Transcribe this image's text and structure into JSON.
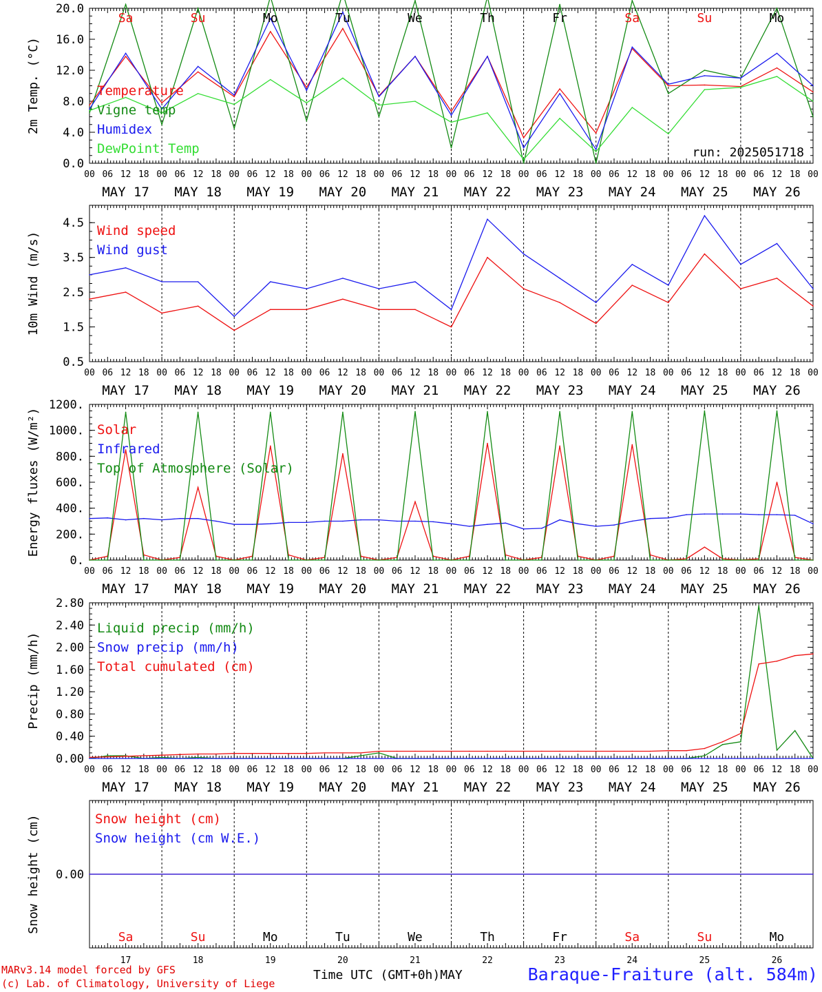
{
  "colors": {
    "red": "#ee1111",
    "green": "#138a13",
    "blue": "#1a1aee",
    "lightgreen": "#33dd33",
    "grid": "#000000"
  },
  "days": [
    {
      "dow": "Sa",
      "date": "MAY 17",
      "num": "17",
      "weekend": true
    },
    {
      "dow": "Su",
      "date": "MAY 18",
      "num": "18",
      "weekend": true
    },
    {
      "dow": "Mo",
      "date": "MAY 19",
      "num": "19",
      "weekend": false
    },
    {
      "dow": "Tu",
      "date": "MAY 20",
      "num": "20",
      "weekend": false
    },
    {
      "dow": "We",
      "date": "MAY 21",
      "num": "21",
      "weekend": false
    },
    {
      "dow": "Th",
      "date": "MAY 22",
      "num": "22",
      "weekend": false
    },
    {
      "dow": "Fr",
      "date": "MAY 23",
      "num": "23",
      "weekend": false
    },
    {
      "dow": "Sa",
      "date": "MAY 24",
      "num": "24",
      "weekend": true
    },
    {
      "dow": "Su",
      "date": "MAY 25",
      "num": "25",
      "weekend": true
    },
    {
      "dow": "Mo",
      "date": "MAY 26",
      "num": "26",
      "weekend": false
    }
  ],
  "hour_ticks": [
    "00",
    "06",
    "12",
    "18"
  ],
  "run_label": "run: 2025051718",
  "month_label": "MAY",
  "footer": {
    "model": "MARv3.14 model forced by GFS",
    "credit": "(c) Lab. of Climatology, University of Liege",
    "time_label": "Time UTC (GMT+0h)",
    "station": "Baraque-Fraiture (alt. 584m)"
  },
  "chart_data": [
    {
      "type": "line",
      "ylabel": "2m Temp. (°C)",
      "ylim": [
        0,
        20
      ],
      "y_ticks": [
        "0.0",
        "4.0",
        "8.0",
        "12.0",
        "16.0",
        "20.0"
      ],
      "x": [
        0,
        12,
        24,
        36,
        48,
        60,
        72,
        84,
        96,
        108,
        120,
        132,
        144,
        156,
        168,
        180,
        192,
        204,
        216,
        228,
        240
      ],
      "series": [
        {
          "name": "Temperature",
          "color": "red",
          "values": [
            7.5,
            13.8,
            7.8,
            11.8,
            8.6,
            17.0,
            9.8,
            17.4,
            8.7,
            13.8,
            6.7,
            13.8,
            3.3,
            9.6,
            3.9,
            14.8,
            10.0,
            10.1,
            9.9,
            12.3,
            9.2
          ]
        },
        {
          "name": "Vigne temp",
          "color": "green",
          "values": [
            6.5,
            20.5,
            5.0,
            20.0,
            4.5,
            21.5,
            5.5,
            22.0,
            6.0,
            21.0,
            2.0,
            21.5,
            0.0,
            20.5,
            0.0,
            21.0,
            9.0,
            12.0,
            11.0,
            20.0,
            6.0
          ]
        },
        {
          "name": "Humidex",
          "color": "blue",
          "values": [
            7.0,
            14.2,
            7.0,
            12.5,
            8.8,
            18.7,
            9.4,
            19.5,
            8.6,
            13.8,
            6.2,
            13.8,
            2.0,
            9.0,
            1.8,
            15.0,
            10.2,
            11.3,
            11.0,
            14.2,
            10.0
          ]
        },
        {
          "name": "DewPoint Temp",
          "color": "lightgreen",
          "values": [
            6.8,
            8.5,
            6.5,
            9.0,
            7.6,
            10.8,
            7.8,
            11.0,
            7.5,
            8.0,
            5.3,
            6.5,
            0.5,
            5.8,
            1.5,
            7.2,
            3.8,
            9.5,
            9.8,
            11.2,
            8.0
          ]
        }
      ]
    },
    {
      "type": "line",
      "ylabel": "10m Wind (m/s)",
      "ylim": [
        0.5,
        5.0
      ],
      "y_ticks": [
        "0.5",
        "1.5",
        "2.5",
        "3.5",
        "4.5"
      ],
      "x": [
        0,
        12,
        24,
        36,
        48,
        60,
        72,
        84,
        96,
        108,
        120,
        132,
        144,
        156,
        168,
        180,
        192,
        204,
        216,
        228,
        240
      ],
      "series": [
        {
          "name": "Wind speed",
          "color": "red",
          "values": [
            2.3,
            2.5,
            1.9,
            2.1,
            1.4,
            2.0,
            2.0,
            2.3,
            2.0,
            2.0,
            1.5,
            3.5,
            2.6,
            2.2,
            1.6,
            2.7,
            2.2,
            3.6,
            2.6,
            2.9,
            2.1
          ]
        },
        {
          "name": "Wind gust",
          "color": "blue",
          "values": [
            3.0,
            3.2,
            2.8,
            2.8,
            1.8,
            2.8,
            2.6,
            2.9,
            2.6,
            2.8,
            2.0,
            4.6,
            3.6,
            2.9,
            2.2,
            3.3,
            2.7,
            4.7,
            3.3,
            3.9,
            2.6
          ]
        }
      ]
    },
    {
      "type": "line",
      "ylabel": "Energy fluxes (W/m²)",
      "ylim": [
        0,
        1200
      ],
      "y_ticks": [
        "0.",
        "200.",
        "400.",
        "600.",
        "800.",
        "1000.",
        "1200."
      ],
      "x": [
        0,
        6,
        12,
        18,
        24,
        30,
        36,
        42,
        48,
        54,
        60,
        66,
        72,
        78,
        84,
        90,
        96,
        102,
        108,
        114,
        120,
        126,
        132,
        138,
        144,
        150,
        156,
        162,
        168,
        174,
        180,
        186,
        192,
        198,
        204,
        210,
        216,
        222,
        228,
        234,
        240
      ],
      "series": [
        {
          "name": "Solar",
          "color": "red",
          "values": [
            0,
            30,
            850,
            40,
            0,
            20,
            560,
            30,
            0,
            30,
            880,
            40,
            0,
            20,
            820,
            30,
            0,
            20,
            450,
            30,
            0,
            30,
            900,
            40,
            0,
            20,
            880,
            30,
            0,
            30,
            890,
            40,
            0,
            10,
            100,
            10,
            0,
            10,
            600,
            20,
            0
          ]
        },
        {
          "name": "Infrared",
          "color": "blue",
          "values": [
            320,
            325,
            310,
            320,
            310,
            320,
            320,
            300,
            275,
            275,
            280,
            290,
            290,
            300,
            300,
            310,
            310,
            300,
            300,
            295,
            280,
            260,
            275,
            285,
            240,
            245,
            310,
            280,
            260,
            270,
            300,
            320,
            325,
            350,
            355,
            355,
            355,
            350,
            350,
            345,
            280
          ]
        },
        {
          "name": "Top of Atmosphere (Solar)",
          "color": "green",
          "values": [
            0,
            0,
            1140,
            0,
            0,
            0,
            1140,
            0,
            0,
            0,
            1140,
            0,
            0,
            0,
            1140,
            0,
            0,
            0,
            1145,
            0,
            0,
            0,
            1145,
            0,
            0,
            0,
            1145,
            0,
            0,
            0,
            1145,
            0,
            0,
            0,
            1150,
            0,
            0,
            0,
            1150,
            0,
            0
          ]
        }
      ]
    },
    {
      "type": "line",
      "ylabel": "Precip (mm/h)",
      "ylim": [
        0,
        2.8
      ],
      "y_ticks": [
        "0.00",
        "0.40",
        "0.80",
        "1.20",
        "1.60",
        "2.00",
        "2.40",
        "2.80"
      ],
      "x": [
        0,
        6,
        12,
        18,
        24,
        30,
        36,
        42,
        48,
        54,
        60,
        66,
        72,
        78,
        84,
        90,
        96,
        102,
        108,
        114,
        120,
        126,
        132,
        138,
        144,
        150,
        156,
        162,
        168,
        174,
        180,
        186,
        192,
        198,
        204,
        210,
        216,
        222,
        228,
        234,
        240
      ],
      "series": [
        {
          "name": "Liquid precip (mm/h)",
          "color": "green",
          "values": [
            0,
            0.05,
            0.05,
            0,
            0.02,
            0,
            0.02,
            0,
            0,
            0,
            0,
            0,
            0,
            0,
            0,
            0.05,
            0.1,
            0,
            0,
            0,
            0,
            0,
            0,
            0,
            0,
            0,
            0,
            0,
            0,
            0,
            0,
            0,
            0,
            0,
            0.05,
            0.25,
            0.3,
            2.75,
            0.15,
            0.5,
            0
          ]
        },
        {
          "name": "Snow precip (mm/h)",
          "color": "blue",
          "values": [
            0,
            0,
            0,
            0,
            0,
            0,
            0,
            0,
            0,
            0,
            0,
            0,
            0,
            0,
            0,
            0,
            0,
            0,
            0,
            0,
            0,
            0,
            0,
            0,
            0,
            0,
            0,
            0,
            0,
            0,
            0,
            0,
            0,
            0,
            0,
            0,
            0,
            0,
            0,
            0,
            0
          ]
        },
        {
          "name": "Total cumulated (cm)",
          "color": "red",
          "values": [
            0.02,
            0.03,
            0.04,
            0.05,
            0.06,
            0.07,
            0.08,
            0.08,
            0.09,
            0.09,
            0.09,
            0.09,
            0.09,
            0.1,
            0.1,
            0.1,
            0.13,
            0.13,
            0.13,
            0.13,
            0.13,
            0.13,
            0.13,
            0.13,
            0.13,
            0.13,
            0.13,
            0.13,
            0.13,
            0.13,
            0.13,
            0.13,
            0.14,
            0.14,
            0.18,
            0.3,
            0.45,
            1.7,
            1.75,
            1.85,
            1.88
          ]
        }
      ]
    },
    {
      "type": "line",
      "ylabel": "Snow height (cm)",
      "ylim": [
        -1,
        1
      ],
      "y_ticks": [
        "0.00"
      ],
      "x": [
        0,
        240
      ],
      "series": [
        {
          "name": "Snow height (cm)",
          "color": "red",
          "values": [
            0,
            0
          ]
        },
        {
          "name": "Snow height (cm W.E.)",
          "color": "blue",
          "values": [
            0,
            0
          ]
        }
      ]
    }
  ]
}
